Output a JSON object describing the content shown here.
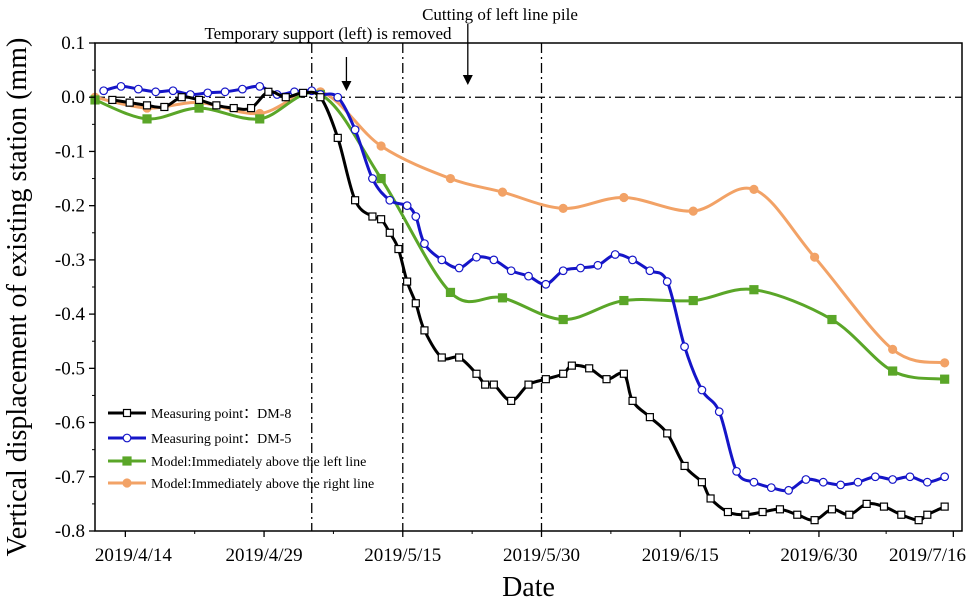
{
  "chart_data": {
    "type": "line",
    "xlabel": "Date",
    "ylabel": "Vertical displacement of existing station (mm)",
    "ylim": [
      -0.8,
      0.1
    ],
    "xlim": [
      0,
      100
    ],
    "x_ticks": [
      {
        "x": 3.5,
        "label": "2019/4/14"
      },
      {
        "x": 19.5,
        "label": "2019/4/29"
      },
      {
        "x": 35.5,
        "label": "2019/5/15"
      },
      {
        "x": 51.5,
        "label": "2019/5/30"
      },
      {
        "x": 67.5,
        "label": "2019/6/15"
      },
      {
        "x": 83.5,
        "label": "2019/6/30"
      },
      {
        "x": 99.0,
        "label": "2019/7/16"
      }
    ],
    "y_ticks": [
      0.1,
      0.0,
      -0.1,
      -0.2,
      -0.3,
      -0.4,
      -0.5,
      -0.6,
      -0.7,
      -0.8
    ],
    "y_tick_labels": [
      "0.1",
      "0.0",
      "-0.1",
      "-0.2",
      "-0.3",
      "-0.4",
      "-0.5",
      "-0.6",
      "-0.7",
      "-0.8"
    ],
    "reference_line_y": 0.0,
    "vertical_lines_x": [
      25,
      35.5,
      51.5
    ],
    "annotations": [
      {
        "text": "Temporary support (left) is removed",
        "arrow_x": 29
      },
      {
        "text": "Cutting of left line pile",
        "arrow_x": 43
      }
    ],
    "series": [
      {
        "name": "Measuring point：DM-8",
        "color": "#000000",
        "marker": "square-open",
        "x": [
          2,
          4,
          6,
          8,
          10,
          12,
          14,
          16,
          18,
          20,
          22,
          24,
          26,
          28,
          30,
          32,
          33,
          34,
          35,
          36,
          37,
          38,
          40,
          42,
          44,
          45,
          46,
          48,
          50,
          52,
          54,
          55,
          57,
          59,
          61,
          62,
          64,
          66,
          68,
          70,
          71,
          73,
          75,
          77,
          79,
          81,
          83,
          85,
          87,
          89,
          91,
          93,
          95,
          96,
          98
        ],
        "values": [
          -0.005,
          -0.01,
          -0.015,
          -0.018,
          0.0,
          -0.005,
          -0.015,
          -0.02,
          -0.02,
          0.01,
          0.0,
          0.008,
          0.0,
          -0.075,
          -0.19,
          -0.22,
          -0.225,
          -0.25,
          -0.28,
          -0.34,
          -0.38,
          -0.43,
          -0.48,
          -0.48,
          -0.51,
          -0.53,
          -0.53,
          -0.56,
          -0.53,
          -0.52,
          -0.51,
          -0.495,
          -0.5,
          -0.52,
          -0.51,
          -0.56,
          -0.59,
          -0.62,
          -0.68,
          -0.71,
          -0.74,
          -0.765,
          -0.77,
          -0.765,
          -0.76,
          -0.77,
          -0.78,
          -0.76,
          -0.77,
          -0.75,
          -0.755,
          -0.77,
          -0.78,
          -0.77,
          -0.755
        ]
      },
      {
        "name": "Measuring point：DM-5",
        "color": "#1515c8",
        "marker": "circle-open",
        "x": [
          1,
          3,
          5,
          7,
          9,
          11,
          13,
          15,
          17,
          19,
          21,
          23,
          25,
          26,
          28,
          30,
          32,
          34,
          36,
          37,
          38,
          40,
          42,
          44,
          46,
          48,
          50,
          52,
          54,
          56,
          58,
          60,
          62,
          64,
          66,
          68,
          70,
          72,
          74,
          76,
          78,
          80,
          82,
          84,
          86,
          88,
          90,
          92,
          94,
          96,
          98
        ],
        "values": [
          0.012,
          0.02,
          0.015,
          0.01,
          0.012,
          0.005,
          0.008,
          0.01,
          0.015,
          0.02,
          0.005,
          0.01,
          0.012,
          0.005,
          0.0,
          -0.06,
          -0.15,
          -0.19,
          -0.2,
          -0.22,
          -0.27,
          -0.3,
          -0.315,
          -0.295,
          -0.3,
          -0.32,
          -0.33,
          -0.345,
          -0.32,
          -0.315,
          -0.31,
          -0.29,
          -0.3,
          -0.32,
          -0.34,
          -0.46,
          -0.54,
          -0.58,
          -0.69,
          -0.71,
          -0.72,
          -0.725,
          -0.705,
          -0.71,
          -0.715,
          -0.71,
          -0.7,
          -0.705,
          -0.7,
          -0.71,
          -0.7
        ]
      },
      {
        "name": "Model:Immediately above the left line",
        "color": "#5aa628",
        "marker": "square-filled",
        "x": [
          0,
          6,
          12,
          19,
          26,
          33,
          41,
          47,
          54,
          61,
          69,
          76,
          85,
          92,
          98
        ],
        "values": [
          -0.005,
          -0.04,
          -0.02,
          -0.04,
          0.005,
          -0.15,
          -0.36,
          -0.37,
          -0.41,
          -0.375,
          -0.375,
          -0.355,
          -0.41,
          -0.505,
          -0.52
        ]
      },
      {
        "name": "Model:Immediately above the right line",
        "color": "#f2a266",
        "marker": "circle-filled",
        "x": [
          0,
          6,
          12,
          19,
          26,
          33,
          41,
          47,
          54,
          61,
          69,
          76,
          83,
          92,
          98
        ],
        "values": [
          0.0,
          -0.02,
          -0.01,
          -0.03,
          0.01,
          -0.09,
          -0.15,
          -0.175,
          -0.205,
          -0.185,
          -0.21,
          -0.17,
          -0.295,
          -0.465,
          -0.49
        ]
      }
    ]
  }
}
